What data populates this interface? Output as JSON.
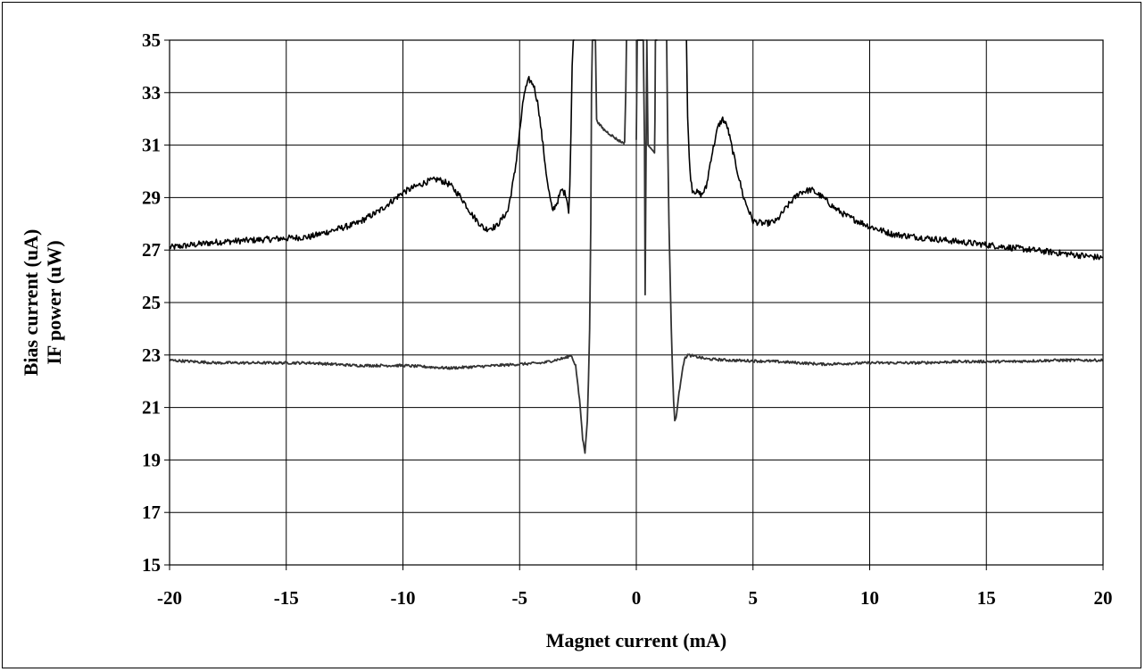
{
  "chart_data": {
    "type": "line",
    "title": "",
    "xlabel": "Magnet current (mA)",
    "ylabel_lines": [
      "Bias current (uA)",
      "IF power (uW)"
    ],
    "xlim": [
      -20,
      20
    ],
    "ylim": [
      15,
      35
    ],
    "xticks": [
      "-20",
      "-15",
      "-10",
      "-5",
      "0",
      "5",
      "10",
      "15",
      "20"
    ],
    "yticks": [
      "15",
      "17",
      "19",
      "21",
      "23",
      "25",
      "27",
      "29",
      "31",
      "33",
      "35"
    ],
    "grid": true,
    "legend": "none",
    "series": [
      {
        "color": "#000000",
        "noise": 0.12,
        "x": [
          -20,
          -18,
          -16,
          -14,
          -12,
          -11,
          -10,
          -9,
          -8.5,
          -8,
          -7.5,
          -7,
          -6.5,
          -6,
          -5.5,
          -5.2,
          -5,
          -4.8,
          -4.6,
          -4.4,
          -4.2,
          -4,
          -3.8,
          -3.6,
          -3.4,
          -3.2,
          -3,
          -2.9,
          -2.85,
          -2.8,
          -2.75,
          -2.7,
          -2.65
        ],
        "y": [
          27.1,
          27.3,
          27.4,
          27.5,
          28.0,
          28.5,
          29.2,
          29.6,
          29.7,
          29.5,
          29.0,
          28.3,
          27.8,
          27.9,
          28.5,
          30.0,
          31.5,
          33.0,
          33.5,
          33.3,
          32.5,
          31.0,
          29.5,
          28.5,
          28.8,
          29.3,
          29.1,
          28.5,
          29.5,
          31.5,
          34.0,
          35.0,
          35.0
        ]
      },
      {
        "color": "#000000",
        "noise": 0.12,
        "x": [
          2.15,
          2.2,
          2.3,
          2.4,
          2.6,
          2.8,
          3.0,
          3.2,
          3.5,
          3.7,
          3.9,
          4.2,
          4.6,
          5,
          5.5,
          6,
          6.5,
          7,
          7.5,
          8,
          8.5,
          9,
          10,
          11,
          12,
          14,
          16,
          18,
          20
        ],
        "y": [
          35.0,
          32.0,
          30.0,
          29.3,
          29.2,
          29.1,
          29.4,
          30.5,
          31.7,
          32.0,
          31.7,
          30.5,
          29.0,
          28.1,
          28.0,
          28.1,
          28.7,
          29.2,
          29.3,
          29.0,
          28.6,
          28.3,
          27.9,
          27.6,
          27.5,
          27.3,
          27.1,
          26.9,
          26.7
        ]
      },
      {
        "color": "#333333",
        "noise": 0.05,
        "x": [
          -20,
          -18,
          -16,
          -14,
          -12,
          -10,
          -8,
          -6,
          -4,
          -3,
          -2.8,
          -2.6,
          -2.4,
          -2.3,
          -2.2,
          -2.1,
          -2.05,
          -2.0,
          -1.95,
          -1.92,
          -1.88,
          -1.85,
          -1.8,
          -1.75,
          -1.7,
          -1.6,
          -1.4,
          -1.1,
          -0.8,
          -0.6,
          -0.5,
          -0.45,
          -0.42
        ],
        "y": [
          22.8,
          22.7,
          22.7,
          22.7,
          22.6,
          22.6,
          22.5,
          22.6,
          22.7,
          22.9,
          23.0,
          22.6,
          21.0,
          19.8,
          19.3,
          20.5,
          22.0,
          24.0,
          28.0,
          33.0,
          35.0,
          35.0,
          35.0,
          35.0,
          32.0,
          31.8,
          31.6,
          31.4,
          31.2,
          31.1,
          31.1,
          33.0,
          35.0
        ]
      },
      {
        "color": "#333333",
        "noise": 0.0,
        "x": [
          0.0,
          0.02,
          0.04,
          0.1,
          0.3,
          0.35,
          0.38,
          0.42,
          0.45,
          0.5,
          0.7,
          0.78,
          0.8,
          0.82,
          0.9
        ],
        "y": [
          31.2,
          33.0,
          35.0,
          35.0,
          35.0,
          31.0,
          25.3,
          31.0,
          35.0,
          31.0,
          30.8,
          30.7,
          32.0,
          35.0,
          35.0
        ]
      },
      {
        "color": "#333333",
        "noise": 0.05,
        "x": [
          1.3,
          1.35,
          1.4,
          1.45,
          1.5,
          1.55,
          1.6,
          1.65,
          1.7,
          1.8,
          1.9,
          2.0,
          2.1,
          2.2,
          2.5,
          3,
          4,
          6,
          8,
          10,
          12,
          14,
          16,
          18,
          20
        ],
        "y": [
          35.0,
          31.0,
          28.0,
          26.0,
          24.0,
          22.5,
          21.2,
          20.5,
          20.6,
          21.3,
          22.0,
          22.6,
          22.9,
          23.0,
          22.95,
          22.85,
          22.8,
          22.75,
          22.65,
          22.7,
          22.7,
          22.75,
          22.75,
          22.8,
          22.8
        ]
      }
    ]
  }
}
